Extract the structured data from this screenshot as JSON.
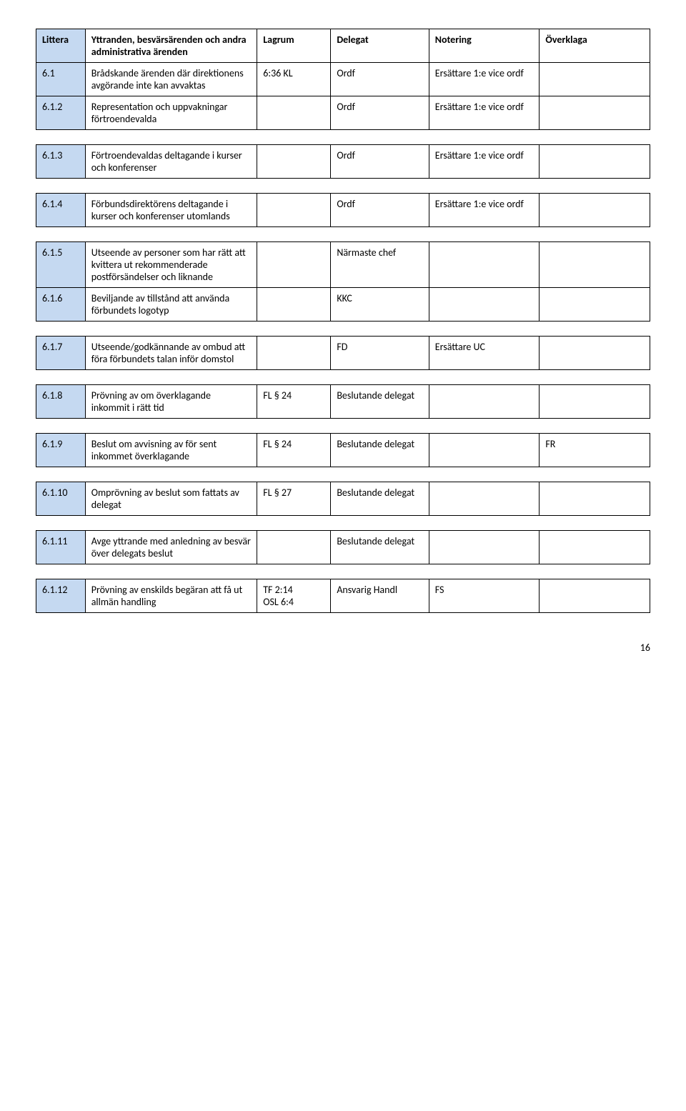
{
  "headers": {
    "littera": "Littera",
    "desc": "Yttranden, besvärsärenden och andra administrativa ärenden",
    "lagrum": "Lagrum",
    "delegat": "Delegat",
    "notering": "Notering",
    "overklaga": "Överklaga"
  },
  "rows": {
    "r1": {
      "lit": "6.1",
      "desc": "Brådskande ärenden där direktionens avgörande inte kan avvaktas",
      "lagrum": "6:36 KL",
      "delegat": "Ordf",
      "notering": "Ersättare 1:e vice ordf",
      "overklaga": ""
    },
    "r2": {
      "lit": "6.1.2",
      "desc": "Representation och uppvakningar förtroendevalda",
      "lagrum": "",
      "delegat": "Ordf",
      "notering": "Ersättare 1:e vice ordf",
      "overklaga": ""
    },
    "r3": {
      "lit": "6.1.3",
      "desc": "Förtroendevaldas deltagande i kurser och konferenser",
      "lagrum": "",
      "delegat": "Ordf",
      "notering": "Ersättare 1:e vice ordf",
      "overklaga": ""
    },
    "r4": {
      "lit": "6.1.4",
      "desc": "Förbundsdirektörens deltagande i kurser och konferenser utomlands",
      "lagrum": "",
      "delegat": "Ordf",
      "notering": "Ersättare 1:e vice ordf",
      "overklaga": ""
    },
    "r5": {
      "lit": "6.1.5",
      "desc": "Utseende av personer som har rätt att kvittera ut rekommenderade postförsändelser och liknande",
      "lagrum": "",
      "delegat": "Närmaste chef",
      "notering": "",
      "overklaga": ""
    },
    "r6": {
      "lit": "6.1.6",
      "desc": "Beviljande av tillstånd att använda förbundets logotyp",
      "lagrum": "",
      "delegat": "KKC",
      "notering": "",
      "overklaga": ""
    },
    "r7": {
      "lit": "6.1.7",
      "desc": "Utseende/godkännande av ombud att föra förbundets talan inför domstol",
      "lagrum": "",
      "delegat": "FD",
      "notering": "Ersättare UC",
      "overklaga": ""
    },
    "r8": {
      "lit": "6.1.8",
      "desc": "Prövning av om överklagande inkommit i rätt tid",
      "lagrum": "FL § 24",
      "delegat": "Beslutande delegat",
      "notering": "",
      "overklaga": ""
    },
    "r9": {
      "lit": "6.1.9",
      "desc": "Beslut om avvisning av för sent inkommet överklagande",
      "lagrum": "FL § 24",
      "delegat": "Beslutande delegat",
      "notering": "",
      "overklaga": "FR"
    },
    "r10": {
      "lit": "6.1.10",
      "desc": "Omprövning av beslut som fattats av delegat",
      "lagrum": "FL § 27",
      "delegat": "Beslutande delegat",
      "notering": "",
      "overklaga": ""
    },
    "r11": {
      "lit": "6.1.11",
      "desc": "Avge yttrande med anledning av besvär över delegats beslut",
      "lagrum": "",
      "delegat": "Beslutande delegat",
      "notering": "",
      "overklaga": ""
    },
    "r12": {
      "lit": "6.1.12",
      "desc": "Prövning av enskilds begäran att få ut allmän handling",
      "lagrum": "TF 2:14\nOSL 6:4",
      "delegat": "Ansvarig Handl",
      "notering": "FS",
      "overklaga": ""
    }
  },
  "pageNumber": "16"
}
